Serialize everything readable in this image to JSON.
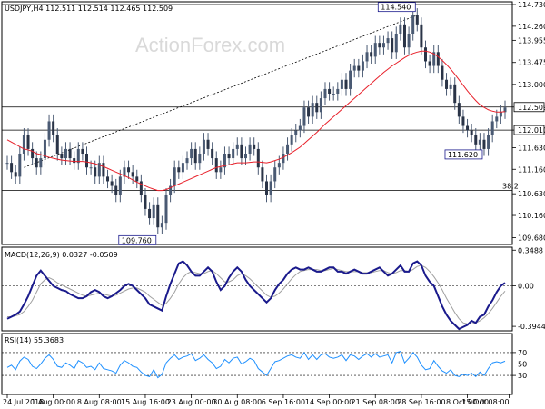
{
  "header": {
    "symbol_line": "USDJPY,H4  112.511 112.514 112.465 112.509",
    "watermark": "ActionForex.com"
  },
  "colors": {
    "price": "#4a5a73",
    "ma": "#e8202a",
    "macd": "#1a1a8c",
    "macd_signal": "#a0a0a0",
    "rsi": "#1e90ff",
    "grid": "#000000",
    "frame": "#000000"
  },
  "chart_data": [
    {
      "type": "candlestick",
      "title": "USDJPY,H4  112.511 112.514 112.465 112.509",
      "ylim": [
        109.55,
        114.75
      ],
      "y_ticks": [
        "114.730",
        "114.260",
        "113.955",
        "113.475",
        "113.000",
        "112.509",
        "112.010",
        "111.630",
        "111.160",
        "110.630",
        "110.160",
        "109.680"
      ],
      "y_tick_values": [
        114.73,
        114.26,
        113.955,
        113.475,
        113.0,
        112.509,
        112.01,
        111.63,
        111.16,
        110.63,
        110.16,
        109.68
      ],
      "current_price": 112.509,
      "current_price_label": "112.509",
      "horizontal_lines": [
        {
          "value": 114.73
        },
        {
          "value": 112.509
        },
        {
          "value": 112.01
        },
        {
          "value": 110.7,
          "label": "38.2"
        }
      ],
      "annotations": [
        {
          "label": "114.540",
          "x_index": 98,
          "value": 114.54
        },
        {
          "label": "111.620",
          "x_index": 114,
          "value": 111.62
        },
        {
          "label": "109.760",
          "x_index": 36,
          "value": 109.76
        }
      ],
      "trendline": {
        "from": {
          "x_index": 4,
          "value": 111.2
        },
        "to": {
          "x_index": 98,
          "value": 114.5
        }
      },
      "series": [
        {
          "name": "price",
          "values": [
            111.3,
            111.1,
            111.0,
            111.5,
            111.9,
            111.6,
            111.4,
            111.2,
            111.4,
            111.8,
            112.2,
            111.9,
            111.5,
            111.4,
            111.6,
            111.4,
            111.3,
            111.6,
            111.5,
            111.2,
            111.2,
            111.0,
            111.3,
            111.0,
            110.9,
            110.8,
            110.6,
            111.0,
            111.2,
            111.1,
            111.0,
            110.9,
            110.6,
            110.3,
            110.1,
            110.4,
            109.9,
            110.0,
            110.6,
            110.8,
            111.2,
            111.1,
            111.3,
            111.4,
            111.6,
            111.3,
            111.5,
            111.8,
            111.6,
            111.4,
            111.1,
            111.2,
            111.5,
            111.4,
            111.6,
            111.7,
            111.4,
            111.5,
            111.7,
            111.6,
            111.2,
            110.9,
            110.6,
            110.9,
            111.2,
            111.3,
            111.5,
            111.7,
            111.9,
            112.0,
            112.1,
            112.5,
            112.3,
            112.6,
            112.4,
            112.7,
            112.9,
            112.8,
            112.8,
            112.9,
            113.1,
            112.9,
            113.3,
            113.4,
            113.3,
            113.5,
            113.7,
            113.6,
            113.9,
            113.8,
            113.9,
            114.0,
            113.7,
            114.1,
            114.3,
            113.8,
            114.1,
            114.5,
            114.3,
            113.8,
            113.5,
            113.4,
            113.7,
            113.4,
            113.1,
            112.9,
            113.0,
            112.6,
            112.3,
            112.1,
            112.0,
            111.9,
            111.7,
            111.8,
            111.6,
            111.9,
            112.2,
            112.3,
            112.4,
            112.5
          ]
        },
        {
          "name": "MA",
          "values": [
            111.8,
            111.75,
            111.7,
            111.65,
            111.6,
            111.58,
            111.55,
            111.5,
            111.48,
            111.45,
            111.42,
            111.4,
            111.38,
            111.36,
            111.35,
            111.34,
            111.33,
            111.33,
            111.33,
            111.32,
            111.3,
            111.28,
            111.25,
            111.22,
            111.18,
            111.14,
            111.1,
            111.06,
            111.02,
            110.98,
            110.93,
            110.88,
            110.84,
            110.8,
            110.76,
            110.73,
            110.7,
            110.7,
            110.72,
            110.76,
            110.8,
            110.84,
            110.88,
            110.92,
            110.96,
            111.0,
            111.04,
            111.08,
            111.12,
            111.16,
            111.2,
            111.22,
            111.24,
            111.26,
            111.28,
            111.3,
            111.3,
            111.3,
            111.31,
            111.32,
            111.32,
            111.31,
            111.3,
            111.32,
            111.35,
            111.38,
            111.42,
            111.47,
            111.52,
            111.58,
            111.64,
            111.72,
            111.8,
            111.88,
            111.96,
            112.05,
            112.14,
            112.22,
            112.3,
            112.38,
            112.46,
            112.54,
            112.62,
            112.7,
            112.78,
            112.86,
            112.94,
            113.02,
            113.1,
            113.18,
            113.26,
            113.33,
            113.4,
            113.46,
            113.52,
            113.58,
            113.63,
            113.67,
            113.7,
            113.72,
            113.72,
            113.7,
            113.66,
            113.6,
            113.52,
            113.43,
            113.33,
            113.22,
            113.1,
            112.98,
            112.86,
            112.75,
            112.65,
            112.56,
            112.5,
            112.45,
            112.42,
            112.4,
            112.4,
            112.41
          ]
        }
      ]
    },
    {
      "type": "line",
      "title": "MACD(12,26,9) 0.0327 -0.0509",
      "ylim": [
        -0.42,
        0.36
      ],
      "y_ticks": [
        "0.3488",
        "0.00",
        "-0.3944"
      ],
      "y_tick_values": [
        0.3488,
        0.0,
        -0.3944
      ],
      "series": [
        {
          "name": "MACD",
          "values": [
            -0.32,
            -0.3,
            -0.28,
            -0.25,
            -0.18,
            -0.1,
            0.0,
            0.1,
            0.15,
            0.1,
            0.05,
            0.0,
            -0.02,
            -0.04,
            -0.05,
            -0.08,
            -0.1,
            -0.12,
            -0.12,
            -0.1,
            -0.06,
            -0.04,
            -0.06,
            -0.1,
            -0.12,
            -0.1,
            -0.07,
            -0.04,
            0.0,
            0.02,
            0.0,
            -0.04,
            -0.08,
            -0.12,
            -0.18,
            -0.2,
            -0.22,
            -0.24,
            -0.1,
            0.02,
            0.12,
            0.22,
            0.24,
            0.2,
            0.14,
            0.1,
            0.1,
            0.14,
            0.18,
            0.14,
            0.04,
            -0.04,
            0.0,
            0.08,
            0.14,
            0.18,
            0.14,
            0.06,
            0.0,
            -0.04,
            -0.08,
            -0.12,
            -0.16,
            -0.12,
            -0.04,
            0.02,
            0.06,
            0.12,
            0.16,
            0.18,
            0.16,
            0.16,
            0.18,
            0.16,
            0.14,
            0.14,
            0.16,
            0.18,
            0.18,
            0.14,
            0.14,
            0.12,
            0.14,
            0.16,
            0.14,
            0.12,
            0.12,
            0.14,
            0.16,
            0.18,
            0.14,
            0.1,
            0.12,
            0.16,
            0.2,
            0.14,
            0.14,
            0.22,
            0.24,
            0.2,
            0.1,
            0.04,
            0.0,
            -0.1,
            -0.2,
            -0.28,
            -0.34,
            -0.38,
            -0.42,
            -0.4,
            -0.38,
            -0.34,
            -0.36,
            -0.3,
            -0.28,
            -0.2,
            -0.14,
            -0.06,
            0.0,
            0.03
          ]
        },
        {
          "name": "Signal",
          "values": [
            -0.3,
            -0.3,
            -0.29,
            -0.28,
            -0.25,
            -0.2,
            -0.14,
            -0.06,
            0.02,
            0.06,
            0.08,
            0.06,
            0.03,
            0.01,
            -0.01,
            -0.03,
            -0.05,
            -0.07,
            -0.09,
            -0.1,
            -0.09,
            -0.08,
            -0.07,
            -0.08,
            -0.09,
            -0.1,
            -0.09,
            -0.07,
            -0.05,
            -0.03,
            -0.02,
            -0.02,
            -0.04,
            -0.06,
            -0.1,
            -0.13,
            -0.16,
            -0.19,
            -0.17,
            -0.12,
            -0.06,
            0.02,
            0.08,
            0.12,
            0.14,
            0.13,
            0.12,
            0.12,
            0.14,
            0.15,
            0.12,
            0.08,
            0.04,
            0.04,
            0.06,
            0.1,
            0.12,
            0.1,
            0.07,
            0.03,
            -0.01,
            -0.05,
            -0.09,
            -0.11,
            -0.1,
            -0.07,
            -0.03,
            0.02,
            0.07,
            0.11,
            0.14,
            0.15,
            0.16,
            0.16,
            0.16,
            0.15,
            0.15,
            0.16,
            0.17,
            0.16,
            0.15,
            0.14,
            0.14,
            0.14,
            0.14,
            0.13,
            0.13,
            0.13,
            0.14,
            0.15,
            0.15,
            0.13,
            0.12,
            0.13,
            0.15,
            0.15,
            0.14,
            0.16,
            0.19,
            0.2,
            0.18,
            0.14,
            0.09,
            0.03,
            -0.04,
            -0.12,
            -0.19,
            -0.26,
            -0.32,
            -0.36,
            -0.37,
            -0.37,
            -0.36,
            -0.34,
            -0.31,
            -0.27,
            -0.22,
            -0.16,
            -0.1,
            -0.05
          ]
        }
      ]
    },
    {
      "type": "line",
      "title": "RSI(14) 55.3683",
      "ylim": [
        0,
        100
      ],
      "y_ticks": [
        "70",
        "50",
        "30"
      ],
      "y_tick_values": [
        70,
        50,
        30
      ],
      "series": [
        {
          "name": "RSI",
          "values": [
            44,
            48,
            40,
            55,
            62,
            58,
            46,
            42,
            50,
            60,
            66,
            58,
            46,
            44,
            52,
            48,
            42,
            56,
            52,
            44,
            46,
            40,
            52,
            42,
            40,
            38,
            34,
            48,
            56,
            52,
            46,
            44,
            36,
            30,
            28,
            40,
            26,
            32,
            52,
            60,
            66,
            58,
            62,
            64,
            68,
            56,
            60,
            66,
            58,
            52,
            42,
            46,
            58,
            52,
            60,
            62,
            50,
            54,
            60,
            56,
            42,
            36,
            30,
            42,
            54,
            56,
            60,
            64,
            66,
            62,
            60,
            70,
            58,
            66,
            58,
            66,
            68,
            62,
            60,
            62,
            66,
            56,
            66,
            64,
            58,
            64,
            68,
            62,
            68,
            62,
            64,
            66,
            52,
            70,
            72,
            52,
            60,
            70,
            62,
            48,
            40,
            42,
            56,
            46,
            38,
            34,
            40,
            30,
            28,
            32,
            30,
            34,
            28,
            36,
            30,
            42,
            52,
            54,
            52,
            55
          ]
        }
      ]
    },
    {
      "type": "axis",
      "x_ticks": [
        "24 Jul 2018",
        "1 Aug 00:00",
        "8 Aug 08:00",
        "15 Aug 16:00",
        "23 Aug 00:00",
        "30 Aug 08:00",
        "6 Sep 16:00",
        "14 Sep 00:00",
        "21 Sep 08:00",
        "28 Sep 16:00",
        "8 Oct 00:00",
        "15 Oct 08:00"
      ],
      "x_tick_indices": [
        0,
        11,
        22,
        33,
        44,
        55,
        66,
        77,
        88,
        99,
        110,
        120
      ]
    }
  ]
}
